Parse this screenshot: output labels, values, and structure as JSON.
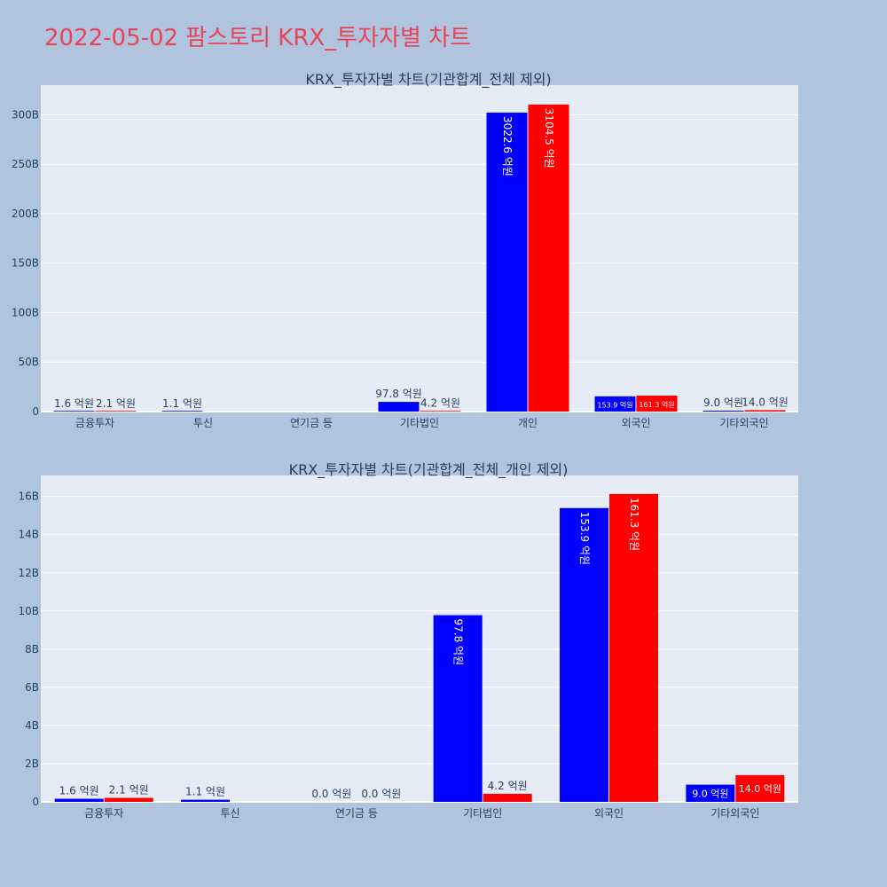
{
  "page": {
    "title": "2022-05-02 팜스토리 KRX_투자자별 차트"
  },
  "chart_data": [
    {
      "type": "bar",
      "title": "KRX_투자자별 차트(기관합계_전체 제외)",
      "categories": [
        "금융투자",
        "투신",
        "연기금 등",
        "기타법인",
        "개인",
        "외국인",
        "기타외국인"
      ],
      "ylim": [
        0,
        330
      ],
      "yticks": [
        0,
        50,
        100,
        150,
        200,
        250,
        300
      ],
      "ytick_labels": [
        "0",
        "50B",
        "100B",
        "150B",
        "200B",
        "250B",
        "300B"
      ],
      "series": [
        {
          "color": "#0000ff",
          "values": [
            0.16,
            0.11,
            null,
            9.78,
            302.26,
            15.39,
            0.9
          ],
          "labels": [
            "1.6 억원",
            "1.1 억원",
            "",
            "97.8 억원",
            "3022.6 억원",
            "153.9 억원",
            "9.0 억원"
          ]
        },
        {
          "color": "#ff0000",
          "values": [
            0.21,
            null,
            null,
            0.42,
            310.45,
            16.13,
            1.4
          ],
          "labels": [
            "2.1 억원",
            "",
            "",
            "4.2 억원",
            "3104.5 억원",
            "161.3 억원",
            "14.0 억원"
          ]
        }
      ]
    },
    {
      "type": "bar",
      "title": "KRX_투자자별 차트(기관합계_전체_개인 제외)",
      "categories": [
        "금융투자",
        "투신",
        "연기금 등",
        "기타법인",
        "외국인",
        "기타외국인"
      ],
      "ylim": [
        0,
        17.1
      ],
      "yticks": [
        0,
        2,
        4,
        6,
        8,
        10,
        12,
        14,
        16
      ],
      "ytick_labels": [
        "0",
        "2B",
        "4B",
        "6B",
        "8B",
        "10B",
        "12B",
        "14B",
        "16B"
      ],
      "series": [
        {
          "color": "#0000ff",
          "values": [
            0.16,
            0.11,
            0,
            9.78,
            15.39,
            0.9
          ],
          "labels": [
            "1.6 억원",
            "1.1 억원",
            "0.0 억원",
            "97.8 억원",
            "153.9 억원",
            "9.0 억원"
          ]
        },
        {
          "color": "#ff0000",
          "values": [
            0.21,
            null,
            0,
            0.42,
            16.13,
            1.4
          ],
          "labels": [
            "2.1 억원",
            "",
            "0.0 억원",
            "4.2 억원",
            "161.3 억원",
            "14.0 억원"
          ]
        }
      ]
    }
  ]
}
